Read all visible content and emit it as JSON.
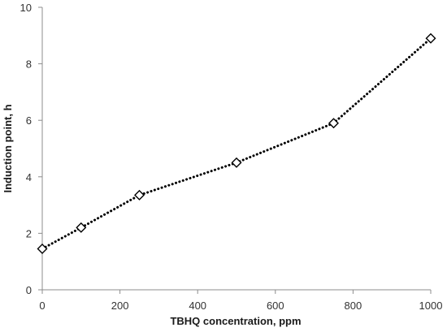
{
  "chart_data": {
    "type": "line",
    "title": "",
    "xlabel": "TBHQ concentration, ppm",
    "ylabel": "Induction point, h",
    "xlim": [
      0,
      1000
    ],
    "ylim": [
      0,
      10
    ],
    "xticks": [
      0,
      200,
      400,
      600,
      800,
      1000
    ],
    "yticks": [
      0,
      2,
      4,
      6,
      8,
      10
    ],
    "grid": false,
    "legend": "none",
    "series": [
      {
        "x": [
          0,
          100,
          250,
          500,
          750,
          1000
        ],
        "y": [
          1.45,
          2.2,
          3.35,
          4.5,
          5.9,
          8.9
        ],
        "marker": "diamond-open",
        "line_style": "dotted",
        "color": "#000000"
      }
    ]
  }
}
